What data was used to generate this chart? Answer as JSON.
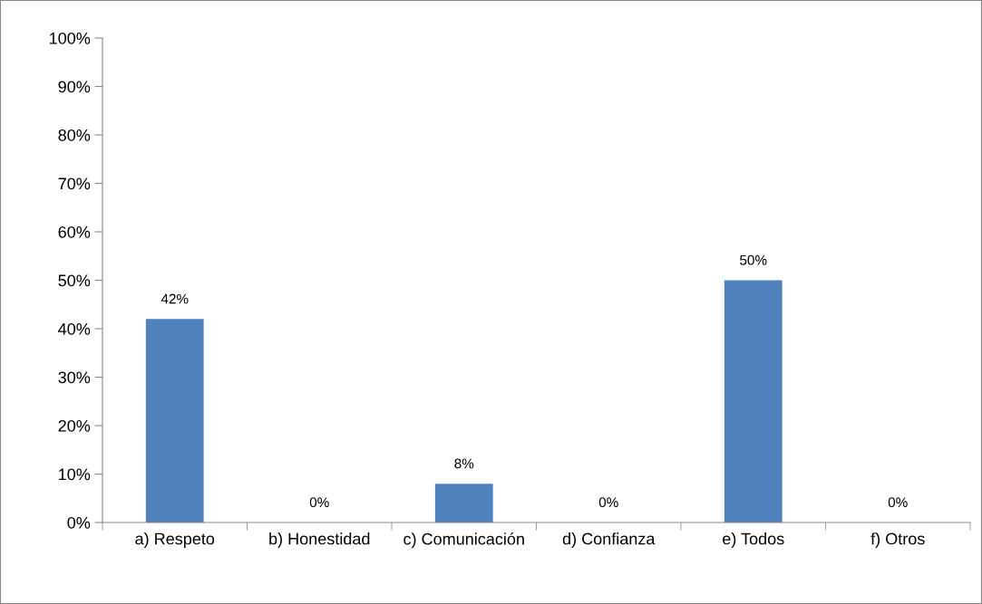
{
  "chart_data": {
    "type": "bar",
    "categories": [
      "a) Respeto",
      "b) Honestidad",
      "c) Comunicación",
      "d) Confianza",
      "e) Todos",
      "f) Otros"
    ],
    "values": [
      42,
      0,
      8,
      0,
      50,
      0
    ],
    "value_labels": [
      "42%",
      "0%",
      "8%",
      "0%",
      "50%",
      "0%"
    ],
    "color": "#4f81bd",
    "ylim": [
      0,
      100
    ],
    "yticks": [
      {
        "value": 0,
        "label": "0%"
      },
      {
        "value": 10,
        "label": "10%"
      },
      {
        "value": 20,
        "label": "20%"
      },
      {
        "value": 30,
        "label": "30%"
      },
      {
        "value": 40,
        "label": "40%"
      },
      {
        "value": 50,
        "label": "50%"
      },
      {
        "value": 60,
        "label": "60%"
      },
      {
        "value": 70,
        "label": "70%"
      },
      {
        "value": 80,
        "label": "80%"
      },
      {
        "value": 90,
        "label": "90%"
      },
      {
        "value": 100,
        "label": "100%"
      }
    ],
    "grid": false,
    "legend": false
  }
}
